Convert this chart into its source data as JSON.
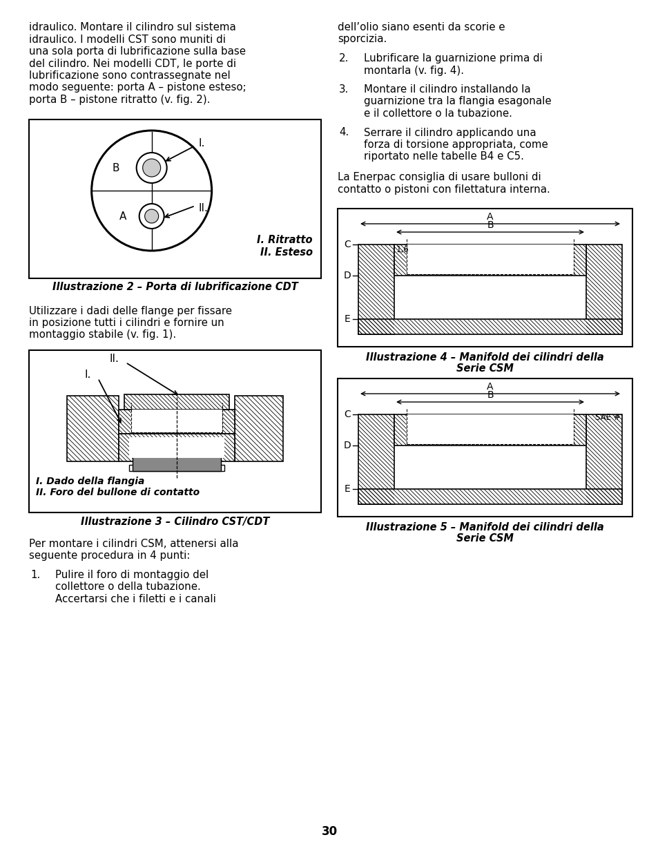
{
  "page_number": "30",
  "background_color": "#ffffff",
  "text_color": "#000000",
  "left_col_lines": [
    "idraulico. Montare il cilindro sul sistema",
    "idraulico. I modelli CST sono muniti di",
    "una sola porta di lubrificazione sulla base",
    "del cilindro. Nei modelli CDT, le porte di",
    "lubrificazione sono contrassegnate nel",
    "modo seguente: porta A – pistone esteso;",
    "porta B – pistone ritratto (v. fig. 2)."
  ],
  "right_col_line1": "dell’olio siano esenti da scorie e",
  "right_col_line2": "sporcizia.",
  "item2_line1": "Lubrificare la guarnizione prima di",
  "item2_line2": "montarla (v. fig. 4).",
  "item3_line1": "Montare il cilindro installando la",
  "item3_line2": "guarnizione tra la flangia esagonale",
  "item3_line3": "e il collettore o la tubazione.",
  "item4_line1": "Serrare il cilindro applicando una",
  "item4_line2": "forza di torsione appropriata, come",
  "item4_line3": "riportato nelle tabelle B4 e C5.",
  "enerpac_line1": "La Enerpac consiglia di usare bulloni di",
  "enerpac_line2": "contatto o pistoni con filettatura interna.",
  "fig2_caption": "Illustrazione 2 – Porta di lubrificazione CDT",
  "fig2_legend1": "I. Ritratto",
  "fig2_legend2": "II. Esteso",
  "mid_para_lines": [
    "Utilizzare i dadi delle flange per fissare",
    "in posizione tutti i cilindri e fornire un",
    "montaggio stabile (v. fig. 1)."
  ],
  "fig3_caption": "Illustrazione 3 – Cilindro CST/CDT",
  "fig3_legend1": "I. Dado della flangia",
  "fig3_legend2": "II. Foro del bullone di contatto",
  "bottom_para_lines": [
    "Per montare i cilindri CSM, attenersi alla",
    "seguente procedura in 4 punti:"
  ],
  "item1_line1": "Pulire il foro di montaggio del",
  "item1_line2": "collettore o della tubazione.",
  "item1_line3": "Accertarsi che i filetti e i canali",
  "fig4_caption1": "Illustrazione 4 – Manifold dei cilindri della",
  "fig4_caption2": "Serie CSM",
  "fig5_caption1": "Illustrazione 5 – Manifold dei cilindri della",
  "fig5_caption2": "Serie CSM"
}
